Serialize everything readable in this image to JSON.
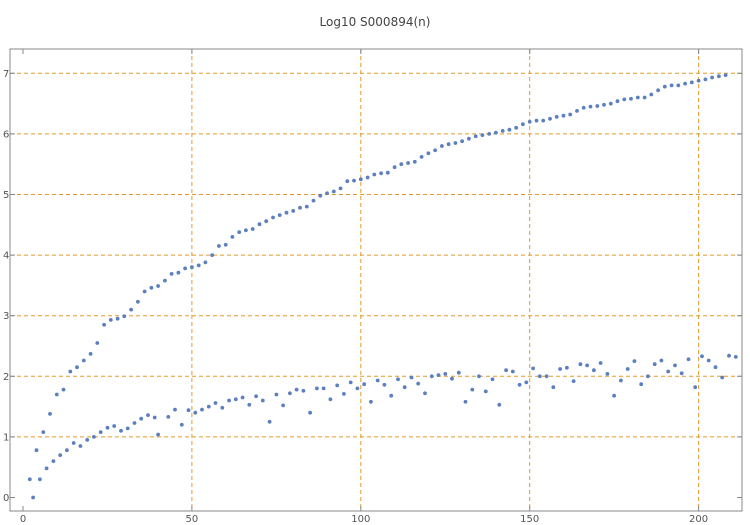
{
  "chart_data": {
    "type": "scatter",
    "title": "Log10 S000894(n)",
    "xlabel": "",
    "ylabel": "",
    "xlim": [
      0,
      210
    ],
    "ylim": [
      -0.1,
      7.15
    ],
    "x_ticks": [
      0,
      50,
      100,
      150,
      200
    ],
    "y_ticks": [
      0,
      1,
      2,
      3,
      4,
      5,
      6,
      7
    ],
    "grid": true,
    "grid_x": [
      50,
      100,
      150,
      200
    ],
    "grid_y": [
      1,
      2,
      3,
      4,
      5,
      6,
      7
    ],
    "colors": {
      "points": "#5b7fbf",
      "grid": "#e39a2b",
      "frame": "#888888"
    },
    "series": [
      {
        "points": [
          [
            2,
            0.3
          ],
          [
            4,
            0.78
          ],
          [
            6,
            1.08
          ],
          [
            8,
            1.38
          ],
          [
            10,
            1.7
          ],
          [
            12,
            1.78
          ],
          [
            14,
            2.08
          ],
          [
            16,
            2.15
          ],
          [
            18,
            2.26
          ],
          [
            20,
            2.37
          ],
          [
            22,
            2.55
          ],
          [
            24,
            2.85
          ],
          [
            26,
            2.93
          ],
          [
            28,
            2.95
          ],
          [
            30,
            2.99
          ],
          [
            32,
            3.1
          ],
          [
            34,
            3.23
          ],
          [
            36,
            3.4
          ],
          [
            38,
            3.46
          ],
          [
            40,
            3.49
          ],
          [
            42,
            3.58
          ],
          [
            44,
            3.69
          ],
          [
            46,
            3.71
          ],
          [
            48,
            3.78
          ],
          [
            50,
            3.8
          ],
          [
            52,
            3.83
          ],
          [
            54,
            3.88
          ],
          [
            56,
            4.0
          ],
          [
            58,
            4.15
          ],
          [
            60,
            4.17
          ],
          [
            62,
            4.3
          ],
          [
            64,
            4.38
          ],
          [
            66,
            4.41
          ],
          [
            68,
            4.43
          ],
          [
            70,
            4.51
          ],
          [
            72,
            4.56
          ],
          [
            74,
            4.62
          ],
          [
            76,
            4.66
          ],
          [
            78,
            4.7
          ],
          [
            80,
            4.73
          ],
          [
            82,
            4.78
          ],
          [
            84,
            4.8
          ],
          [
            86,
            4.9
          ],
          [
            88,
            4.98
          ],
          [
            90,
            5.02
          ],
          [
            92,
            5.05
          ],
          [
            94,
            5.1
          ],
          [
            96,
            5.22
          ],
          [
            98,
            5.23
          ],
          [
            100,
            5.25
          ],
          [
            102,
            5.28
          ],
          [
            104,
            5.33
          ],
          [
            106,
            5.35
          ],
          [
            108,
            5.36
          ],
          [
            110,
            5.45
          ],
          [
            112,
            5.5
          ],
          [
            114,
            5.52
          ],
          [
            116,
            5.54
          ],
          [
            118,
            5.62
          ],
          [
            120,
            5.68
          ],
          [
            122,
            5.73
          ],
          [
            124,
            5.8
          ],
          [
            126,
            5.83
          ],
          [
            128,
            5.85
          ],
          [
            130,
            5.88
          ],
          [
            132,
            5.92
          ],
          [
            134,
            5.96
          ],
          [
            136,
            5.98
          ],
          [
            138,
            6.0
          ],
          [
            140,
            6.02
          ],
          [
            142,
            6.05
          ],
          [
            144,
            6.07
          ],
          [
            146,
            6.1
          ],
          [
            148,
            6.16
          ],
          [
            150,
            6.2
          ],
          [
            152,
            6.22
          ],
          [
            154,
            6.22
          ],
          [
            156,
            6.25
          ],
          [
            158,
            6.28
          ],
          [
            160,
            6.3
          ],
          [
            162,
            6.32
          ],
          [
            164,
            6.38
          ],
          [
            166,
            6.43
          ],
          [
            168,
            6.45
          ],
          [
            170,
            6.46
          ],
          [
            172,
            6.48
          ],
          [
            174,
            6.5
          ],
          [
            176,
            6.54
          ],
          [
            178,
            6.57
          ],
          [
            180,
            6.58
          ],
          [
            182,
            6.6
          ],
          [
            184,
            6.6
          ],
          [
            186,
            6.65
          ],
          [
            188,
            6.72
          ],
          [
            190,
            6.78
          ],
          [
            192,
            6.8
          ],
          [
            194,
            6.8
          ],
          [
            196,
            6.83
          ],
          [
            198,
            6.85
          ],
          [
            200,
            6.88
          ],
          [
            202,
            6.9
          ],
          [
            204,
            6.93
          ],
          [
            206,
            6.95
          ],
          [
            208,
            6.97
          ]
        ]
      },
      {
        "points": [
          [
            3,
            0.0
          ],
          [
            5,
            0.3
          ],
          [
            7,
            0.48
          ],
          [
            9,
            0.6
          ],
          [
            11,
            0.7
          ],
          [
            13,
            0.78
          ],
          [
            15,
            0.9
          ],
          [
            17,
            0.85
          ],
          [
            19,
            0.95
          ],
          [
            21,
            1.0
          ],
          [
            23,
            1.08
          ],
          [
            25,
            1.15
          ],
          [
            27,
            1.18
          ],
          [
            29,
            1.1
          ],
          [
            31,
            1.14
          ],
          [
            33,
            1.23
          ],
          [
            35,
            1.3
          ],
          [
            37,
            1.36
          ],
          [
            39,
            1.32
          ],
          [
            40,
            1.04
          ],
          [
            43,
            1.33
          ],
          [
            45,
            1.45
          ],
          [
            47,
            1.2
          ],
          [
            49,
            1.44
          ],
          [
            51,
            1.4
          ],
          [
            53,
            1.45
          ],
          [
            55,
            1.5
          ],
          [
            57,
            1.56
          ],
          [
            59,
            1.48
          ],
          [
            61,
            1.6
          ],
          [
            63,
            1.62
          ],
          [
            65,
            1.65
          ],
          [
            67,
            1.53
          ],
          [
            69,
            1.67
          ],
          [
            71,
            1.6
          ],
          [
            73,
            1.25
          ],
          [
            75,
            1.7
          ],
          [
            77,
            1.52
          ],
          [
            79,
            1.72
          ],
          [
            81,
            1.78
          ],
          [
            83,
            1.76
          ],
          [
            85,
            1.4
          ],
          [
            87,
            1.8
          ],
          [
            89,
            1.8
          ],
          [
            91,
            1.62
          ],
          [
            93,
            1.85
          ],
          [
            95,
            1.71
          ],
          [
            97,
            1.9
          ],
          [
            99,
            1.8
          ],
          [
            101,
            1.87
          ],
          [
            103,
            1.58
          ],
          [
            105,
            1.93
          ],
          [
            107,
            1.86
          ],
          [
            109,
            1.68
          ],
          [
            111,
            1.95
          ],
          [
            113,
            1.82
          ],
          [
            115,
            1.98
          ],
          [
            117,
            1.88
          ],
          [
            119,
            1.72
          ],
          [
            121,
            2.0
          ],
          [
            123,
            2.02
          ],
          [
            125,
            2.04
          ],
          [
            127,
            1.96
          ],
          [
            129,
            2.06
          ],
          [
            131,
            1.58
          ],
          [
            133,
            1.78
          ],
          [
            135,
            2.0
          ],
          [
            137,
            1.75
          ],
          [
            139,
            1.95
          ],
          [
            141,
            1.53
          ],
          [
            143,
            2.1
          ],
          [
            145,
            2.08
          ],
          [
            147,
            1.86
          ],
          [
            149,
            1.9
          ],
          [
            151,
            2.13
          ],
          [
            153,
            2.0
          ],
          [
            155,
            2.0
          ],
          [
            157,
            1.82
          ],
          [
            159,
            2.12
          ],
          [
            161,
            2.14
          ],
          [
            163,
            1.92
          ],
          [
            165,
            2.2
          ],
          [
            167,
            2.18
          ],
          [
            169,
            2.1
          ],
          [
            171,
            2.22
          ],
          [
            173,
            2.04
          ],
          [
            175,
            1.68
          ],
          [
            177,
            1.93
          ],
          [
            179,
            2.12
          ],
          [
            181,
            2.25
          ],
          [
            183,
            1.87
          ],
          [
            185,
            2.0
          ],
          [
            187,
            2.2
          ],
          [
            189,
            2.26
          ],
          [
            191,
            2.08
          ],
          [
            193,
            2.18
          ],
          [
            195,
            2.05
          ],
          [
            197,
            2.28
          ],
          [
            199,
            1.82
          ],
          [
            201,
            2.33
          ],
          [
            203,
            2.26
          ],
          [
            205,
            2.15
          ],
          [
            207,
            1.98
          ],
          [
            209,
            2.34
          ],
          [
            211,
            2.32
          ]
        ]
      }
    ]
  }
}
